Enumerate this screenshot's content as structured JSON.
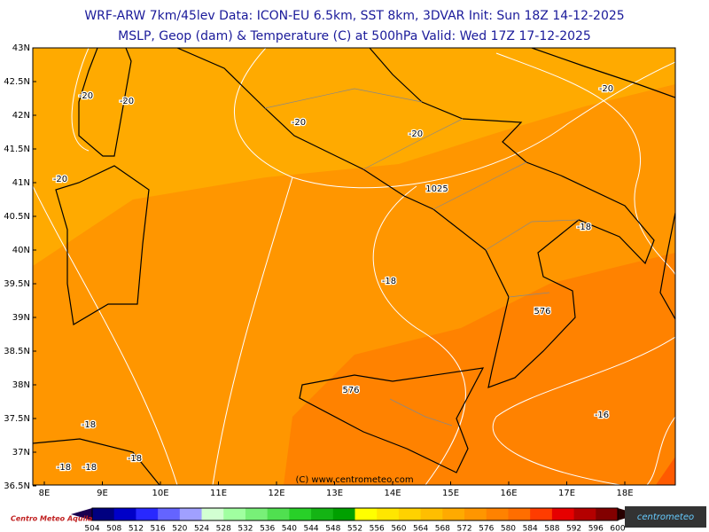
{
  "header": {
    "line1": "WRF-ARW 7km/45lev  Data: ICON-EU 6.5km, SST 8km, 3DVAR  Init: Sun 18Z 14-12-2025",
    "line2": "MSLP, Geop (dam) & Temperature (C) at 500hPa  Valid: Wed 17Z 17-12-2025"
  },
  "axes": {
    "lat_labels": [
      "43N",
      "42.5N",
      "42N",
      "41.5N",
      "41N",
      "40.5N",
      "40N",
      "39.5N",
      "39N",
      "38.5N",
      "38N",
      "37.5N",
      "37N",
      "36.5N"
    ],
    "lon_labels": [
      "8E",
      "9E",
      "10E",
      "11E",
      "12E",
      "13E",
      "14E",
      "15E",
      "16E",
      "17E",
      "18E"
    ]
  },
  "contour_labels": [
    "-20",
    "-20",
    "-20",
    "-20",
    "-20",
    "-20",
    "1025",
    "-18",
    "-18",
    "-18",
    "-18",
    "-18",
    "-18",
    "576",
    "576",
    "-16"
  ],
  "credit": "(C) www.centrometeo.com",
  "colorbar": {
    "values": [
      504,
      508,
      512,
      516,
      520,
      524,
      528,
      532,
      536,
      540,
      544,
      548,
      552,
      556,
      560,
      564,
      568,
      572,
      576,
      580,
      584,
      588,
      592,
      596,
      600
    ],
    "colors": [
      "#000080",
      "#0000c8",
      "#2828ff",
      "#6464ff",
      "#a0a0ff",
      "#d2ffd2",
      "#a0ffa0",
      "#78f078",
      "#50e050",
      "#28d028",
      "#14b414",
      "#00a000",
      "#ffff00",
      "#ffe600",
      "#ffd200",
      "#ffbe00",
      "#ffaa00",
      "#ff9600",
      "#ff8200",
      "#ff6e00",
      "#ff3c00",
      "#e60000",
      "#b40000",
      "#820000"
    ]
  },
  "logos": {
    "left": "Centro Meteo Aquila",
    "right": "centrometeo"
  }
}
